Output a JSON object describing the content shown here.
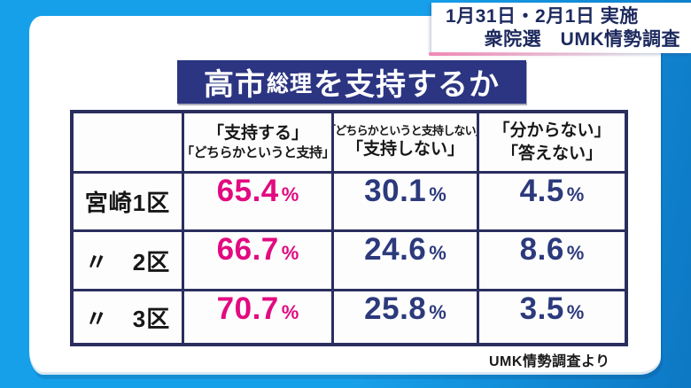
{
  "colors": {
    "bg-start": "#17a0ea",
    "bg-end": "#0d78c4",
    "paper": "#ffffff",
    "title-bg": "#2c3582",
    "title-text": "#ffffff",
    "table-border": "#2a2e5e",
    "support-pink": "#e20a80",
    "value-navy": "#2c3a7c",
    "label-black": "#171717",
    "info-navy": "#1d2a5e",
    "info-accent": "#f087b5"
  },
  "info_box": {
    "line1": "1月31日・2月1日 実施",
    "line2": "衆院選　UMK情勢調査"
  },
  "title": {
    "part1": "高市",
    "part2_small": "総理",
    "part3": "を支持するか"
  },
  "table": {
    "headers": {
      "district": "",
      "support": {
        "line1": "「支持する」",
        "line2": "「どちらかというと支持」"
      },
      "oppose": {
        "line1": "「どちらかというと支持しない」",
        "line2": "「支持しない」"
      },
      "unknown": {
        "line1": "「分からない」",
        "line2": "「答えない」"
      }
    },
    "unit": "%",
    "rows": [
      {
        "district": "宮崎1区",
        "support": "65.4",
        "oppose": "30.1",
        "unknown": "4.5"
      },
      {
        "district": "〃　2区",
        "support": "66.7",
        "oppose": "24.6",
        "unknown": "8.6"
      },
      {
        "district": "〃　3区",
        "support": "70.7",
        "oppose": "25.8",
        "unknown": "3.5"
      }
    ]
  },
  "footer": {
    "source": "UMK情勢調査より"
  },
  "chart_data": {
    "type": "table",
    "title": "高市総理を支持するか",
    "survey_info": "1月31日・2月1日 実施　衆院選 UMK情勢調査",
    "columns": [
      "",
      "「支持する」「どちらかというと支持」",
      "「どちらかというと支持しない」「支持しない」",
      "「分からない」「答えない」"
    ],
    "unit": "%",
    "rows": [
      {
        "district": "宮崎1区",
        "values": [
          65.4,
          30.1,
          4.5
        ]
      },
      {
        "district": "〃 2区",
        "values": [
          66.7,
          24.6,
          8.6
        ]
      },
      {
        "district": "〃 3区",
        "values": [
          70.7,
          25.8,
          3.5
        ]
      }
    ],
    "source": "UMK情勢調査より"
  }
}
